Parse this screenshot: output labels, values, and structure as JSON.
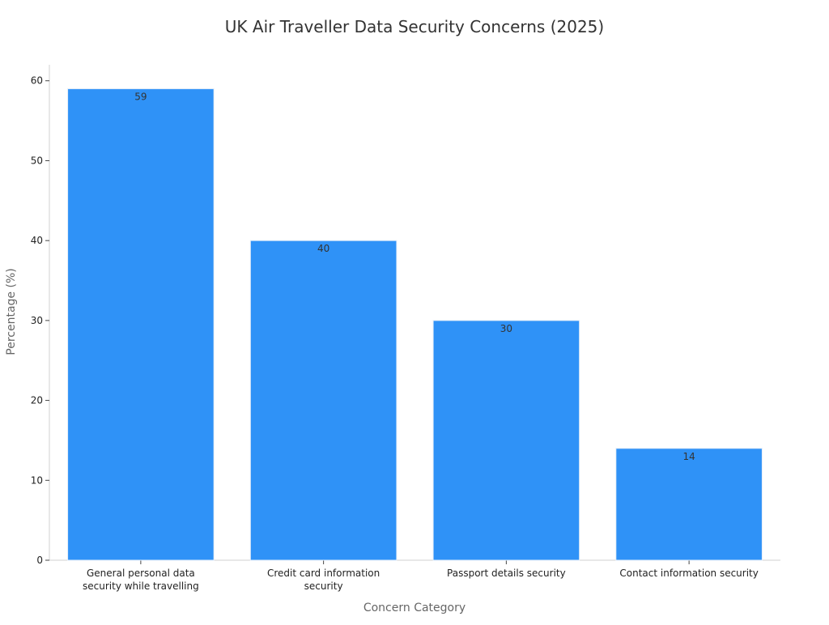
{
  "chart_data": {
    "type": "bar",
    "title": "UK Air Traveller Data Security Concerns (2025)",
    "xlabel": "Concern Category",
    "ylabel": "Percentage (%)",
    "categories": [
      [
        "General personal data",
        "security while travelling"
      ],
      [
        "Credit card information",
        "security"
      ],
      [
        "Passport details security"
      ],
      [
        "Contact information security"
      ]
    ],
    "values": [
      59,
      40,
      30,
      14
    ],
    "ylim": [
      0,
      62
    ],
    "yticks": [
      0,
      10,
      20,
      30,
      40,
      50,
      60
    ],
    "grid": false,
    "legend": "none",
    "colors": {
      "bar": "#2f92f7",
      "bar_edge": "#e6eef8"
    }
  }
}
